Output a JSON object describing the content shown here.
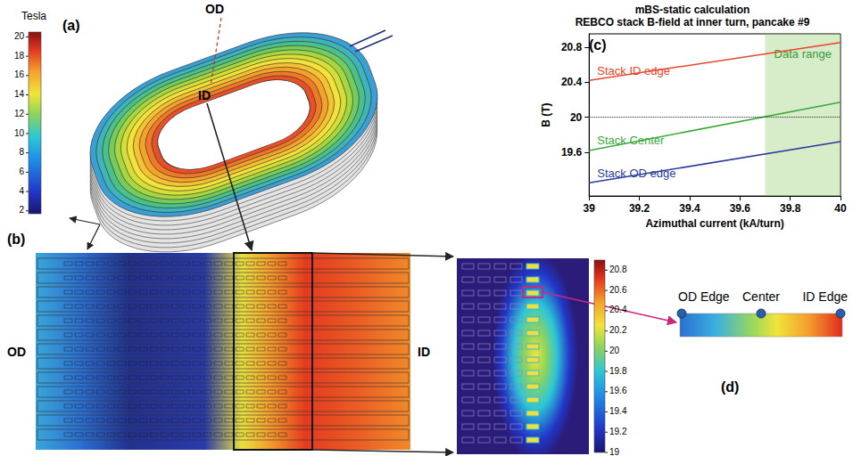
{
  "chart_data": {
    "type": "line",
    "title": "mBS-static calculation",
    "subtitle": "REBCO stack B-field at inner turn, pancake #9",
    "x_label": "Azimuthal current (kA/turn)",
    "y_label": "B (T)",
    "x": [
      39,
      40
    ],
    "series": [
      {
        "name": "Stack ID edge",
        "color": "#e8452a",
        "values": [
          20.42,
          20.85
        ]
      },
      {
        "name": "Stack Center",
        "color": "#3aa83a",
        "values": [
          19.62,
          20.17
        ]
      },
      {
        "name": "Stack OD edge",
        "color": "#2b3a9c",
        "values": [
          19.25,
          19.72
        ]
      }
    ],
    "xlim": [
      39,
      40
    ],
    "xticks": [
      39,
      39.2,
      39.4,
      39.6,
      39.8,
      40
    ],
    "ylim": [
      19.1,
      20.95
    ],
    "yticks": [
      19.6,
      20,
      20.4,
      20.8
    ],
    "grid": false,
    "line_style": "solid",
    "shaded_region": {
      "label": "Data range",
      "x": [
        39.7,
        40
      ],
      "color": "#3a9a3a"
    },
    "reference_line": {
      "y": 20,
      "line_style": "dotted"
    }
  },
  "panels": {
    "a": {
      "label": "(a)",
      "od_label": "OD",
      "id_label": "ID",
      "colorbar": {
        "title": "Tesla",
        "range": [
          1.7,
          20.5
        ],
        "ticks": [
          2,
          4,
          6,
          8,
          10,
          12,
          14,
          16,
          18,
          20
        ]
      }
    },
    "b": {
      "label": "(b)",
      "od_label": "OD",
      "id_label": "ID"
    },
    "c": {
      "label": "(c)"
    },
    "zoom": {
      "colorbar": {
        "range": [
          19,
          20.9
        ],
        "ticks": [
          19,
          19.2,
          19.4,
          19.6,
          19.8,
          20,
          20.2,
          20.4,
          20.6,
          20.8
        ]
      }
    },
    "d": {
      "label": "(d)",
      "points": [
        "OD Edge",
        "Center",
        "ID Edge"
      ]
    }
  }
}
